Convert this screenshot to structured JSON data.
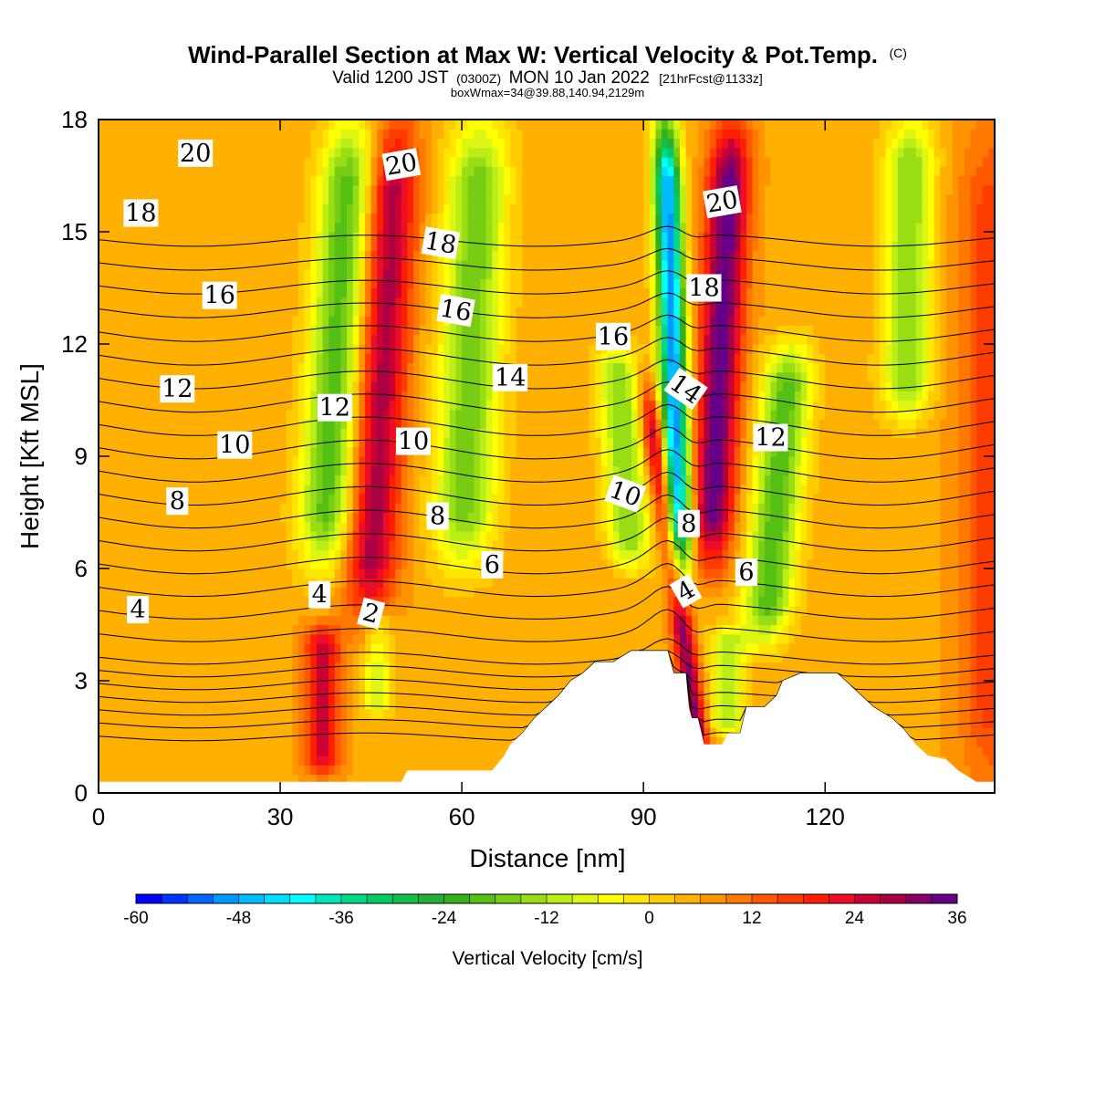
{
  "header": {
    "title_main": "Wind-Parallel Section at Max W: Vertical Velocity & Pot.Temp.",
    "title_mark": "(C)",
    "valid_prefix": "Valid 1200 JST",
    "valid_utc": "(0300Z)",
    "valid_date": "MON 10 Jan 2022",
    "forecast_info": "[21hrFcst@1133z]",
    "box_info": "boxWmax=34@39.88,140.94,2129m"
  },
  "colorbar": {
    "title": "Vertical Velocity [cm/s]",
    "tick_labels": [
      "-60",
      "-48",
      "-36",
      "-24",
      "-12",
      "0",
      "12",
      "24",
      "36"
    ],
    "levels_from": -60,
    "level_step": 3,
    "colors": [
      "#0000ff",
      "#0033ff",
      "#0066ff",
      "#0099ff",
      "#00bbff",
      "#00ddff",
      "#00ffff",
      "#00e6bb",
      "#00d98c",
      "#00cc66",
      "#14bf4c",
      "#22b033",
      "#33b01a",
      "#55c014",
      "#77cc14",
      "#99dd14",
      "#bbee14",
      "#ddf614",
      "#ffff00",
      "#ffe600",
      "#ffcc00",
      "#ffb000",
      "#ff9400",
      "#ff7800",
      "#ff5800",
      "#ff3c00",
      "#ff1e00",
      "#ee0d26",
      "#cc0033",
      "#aa0044",
      "#880066",
      "#660088"
    ]
  },
  "chart_data": {
    "type": "heatmap",
    "title": "Wind-Parallel Section at Max W: Vertical Velocity & Pot.Temp.",
    "xlabel": "Distance [nm]",
    "ylabel": "Height [Kft MSL]",
    "xlim": [
      0,
      148
    ],
    "ylim": [
      0,
      18
    ],
    "x_ticks": [
      "0",
      "30",
      "60",
      "90",
      "120"
    ],
    "y_ticks": [
      "0",
      "3",
      "6",
      "9",
      "12",
      "15",
      "18"
    ],
    "background_w": 5,
    "w_features": [
      {
        "x_base": 37,
        "dx": 0.4,
        "width": 4.5,
        "w": -25,
        "z0": 6,
        "z1": 18
      },
      {
        "x_base": 45,
        "dx": 0.35,
        "width": 4.2,
        "w": 24,
        "z0": 4.5,
        "z1": 18
      },
      {
        "x_base": 60,
        "dx": 0.25,
        "width": 5,
        "w": -22,
        "z0": 6,
        "z1": 18
      },
      {
        "x_base": 95,
        "dx": -0.9,
        "width": 1.8,
        "w": 26,
        "z0": 0.3,
        "z1": 11
      },
      {
        "x_base": 96,
        "dx": -0.2,
        "width": 2.2,
        "w": -55,
        "z0": 5.5,
        "z1": 18
      },
      {
        "x_base": 101,
        "dx": 0.3,
        "width": 3.5,
        "w": 30,
        "z0": 6,
        "z1": 18
      },
      {
        "x_base": 88,
        "dx": -0.4,
        "width": 3.5,
        "w": -20,
        "z0": 6,
        "z1": 12
      },
      {
        "x_base": 111,
        "dx": 0.55,
        "width": 4,
        "w": -25,
        "z0": 4,
        "z1": 12
      },
      {
        "x_base": 133,
        "dx": 0.1,
        "width": 4,
        "w": -20,
        "z0": 10,
        "z1": 18
      },
      {
        "x_base": 148,
        "dx": 0,
        "width": 6,
        "w": 12,
        "z0": 0,
        "z1": 18
      },
      {
        "x_base": 37,
        "dx": 0,
        "width": 3,
        "w": 20,
        "z0": 0.5,
        "z1": 4.5
      },
      {
        "x_base": 46,
        "dx": 0,
        "width": 2.5,
        "w": -12,
        "z0": 2,
        "z1": 5
      },
      {
        "x_base": 104,
        "dx": 0,
        "width": 3,
        "w": -15,
        "z0": 1.5,
        "z1": 4.5
      }
    ],
    "terrain": [
      [
        0,
        0.3
      ],
      [
        50,
        0.3
      ],
      [
        51,
        0.6
      ],
      [
        65,
        0.6
      ],
      [
        67,
        1
      ],
      [
        68,
        1.3
      ],
      [
        70,
        1.6
      ],
      [
        72,
        2
      ],
      [
        74,
        2.3
      ],
      [
        76,
        2.6
      ],
      [
        78,
        3
      ],
      [
        80,
        3.2
      ],
      [
        82,
        3.5
      ],
      [
        85,
        3.5
      ],
      [
        88,
        3.8
      ],
      [
        94,
        3.8
      ],
      [
        95,
        3.2
      ],
      [
        97,
        3.2
      ],
      [
        97.5,
        2.3
      ],
      [
        98,
        2
      ],
      [
        99,
        2
      ],
      [
        100,
        1.3
      ],
      [
        103,
        1.3
      ],
      [
        104,
        1.6
      ],
      [
        106,
        1.6
      ],
      [
        107,
        2.3
      ],
      [
        110,
        2.3
      ],
      [
        112,
        2.6
      ],
      [
        113,
        3
      ],
      [
        116,
        3.2
      ],
      [
        122,
        3.2
      ],
      [
        124,
        2.9
      ],
      [
        126,
        2.6
      ],
      [
        128,
        2.3
      ],
      [
        131,
        2
      ],
      [
        133,
        1.7
      ],
      [
        135,
        1.3
      ],
      [
        137,
        1
      ],
      [
        140,
        0.9
      ],
      [
        142,
        0.6
      ],
      [
        145,
        0.3
      ],
      [
        148,
        0.3
      ]
    ],
    "theta_levels": [
      -3,
      -2,
      -1,
      0,
      1,
      2,
      3,
      4,
      5,
      6,
      7,
      8,
      9,
      10,
      11,
      12,
      13,
      14,
      15,
      16,
      17,
      18,
      19,
      20,
      21
    ],
    "theta_contour_labels": [
      {
        "text": "20",
        "x": 16,
        "z": 17.1,
        "rot": 0
      },
      {
        "text": "18",
        "x": 7,
        "z": 15.5,
        "rot": 0
      },
      {
        "text": "16",
        "x": 20,
        "z": 13.3,
        "rot": 0
      },
      {
        "text": "12",
        "x": 13,
        "z": 10.8,
        "rot": 0
      },
      {
        "text": "10",
        "x": 22.5,
        "z": 9.3,
        "rot": 0
      },
      {
        "text": "8",
        "x": 13,
        "z": 7.8,
        "rot": 0
      },
      {
        "text": "4",
        "x": 6.5,
        "z": 4.9,
        "rot": 0
      },
      {
        "text": "4",
        "x": 36.5,
        "z": 5.3,
        "rot": 0
      },
      {
        "text": "2",
        "x": 45,
        "z": 4.8,
        "rot": 15
      },
      {
        "text": "12",
        "x": 39,
        "z": 10.3,
        "rot": 0
      },
      {
        "text": "10",
        "x": 52,
        "z": 9.4,
        "rot": 0
      },
      {
        "text": "8",
        "x": 56,
        "z": 7.4,
        "rot": 0
      },
      {
        "text": "6",
        "x": 65,
        "z": 6.1,
        "rot": 0
      },
      {
        "text": "20",
        "x": 50,
        "z": 16.8,
        "rot": -10
      },
      {
        "text": "18",
        "x": 56.5,
        "z": 14.7,
        "rot": 10
      },
      {
        "text": "16",
        "x": 59,
        "z": 12.9,
        "rot": 10
      },
      {
        "text": "14",
        "x": 68,
        "z": 11.1,
        "rot": 0
      },
      {
        "text": "16",
        "x": 85,
        "z": 12.2,
        "rot": 0
      },
      {
        "text": "10",
        "x": 87,
        "z": 8.0,
        "rot": 20
      },
      {
        "text": "8",
        "x": 97.5,
        "z": 7.2,
        "rot": 0
      },
      {
        "text": "4",
        "x": 97,
        "z": 5.4,
        "rot": -30
      },
      {
        "text": "6",
        "x": 107,
        "z": 5.9,
        "rot": 0
      },
      {
        "text": "14",
        "x": 97,
        "z": 10.8,
        "rot": 35
      },
      {
        "text": "18",
        "x": 100,
        "z": 13.5,
        "rot": 0
      },
      {
        "text": "20",
        "x": 103,
        "z": 15.8,
        "rot": -10
      },
      {
        "text": "12",
        "x": 111,
        "z": 9.5,
        "rot": 0
      }
    ]
  }
}
